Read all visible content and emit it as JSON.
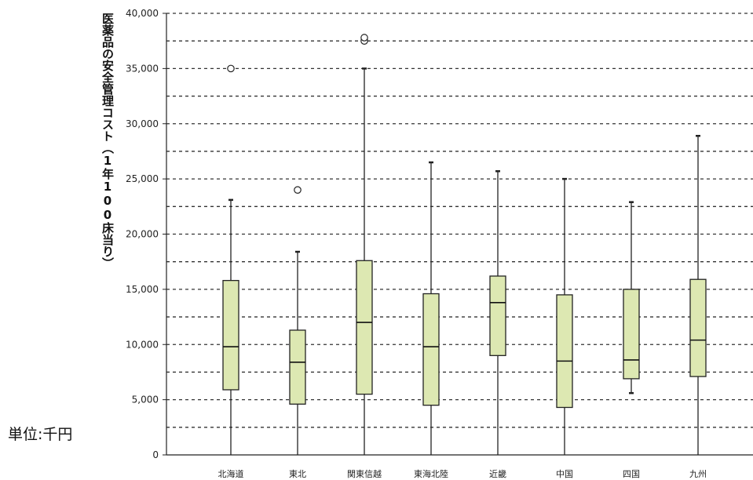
{
  "chart_data": {
    "type": "boxplot",
    "ylabel": "医薬品の安全管理コスト（1年100床当り）",
    "unit_label": "単位:千円",
    "ylim": [
      0,
      40000
    ],
    "y_ticks": [
      0,
      5000,
      10000,
      15000,
      20000,
      25000,
      30000,
      35000,
      40000
    ],
    "y_tick_labels": [
      "0",
      "5,000",
      "10,000",
      "15,000",
      "20,000",
      "25,000",
      "30,000",
      "35,000",
      "40,000"
    ],
    "grid": "dotted horizontal at every 2,500",
    "legend": "none",
    "box_color": "#dde8b2",
    "categories": [
      "北海道",
      "東北",
      "関東信越",
      "東海北陸",
      "近畿",
      "中国",
      "四国",
      "九州"
    ],
    "boxes": [
      {
        "whisker_low": 0,
        "q1": 5900,
        "median": 9800,
        "q3": 15800,
        "whisker_high": 23100,
        "outliers": [
          35000
        ]
      },
      {
        "whisker_low": 0,
        "q1": 4600,
        "median": 8400,
        "q3": 11300,
        "whisker_high": 18400,
        "outliers": [
          24000
        ]
      },
      {
        "whisker_low": 0,
        "q1": 5500,
        "median": 12000,
        "q3": 17600,
        "whisker_high": 35000,
        "outliers": [
          37500,
          37800
        ]
      },
      {
        "whisker_low": 0,
        "q1": 4500,
        "median": 9800,
        "q3": 14600,
        "whisker_high": 26500,
        "outliers": []
      },
      {
        "whisker_low": 0,
        "q1": 9000,
        "median": 13800,
        "q3": 16200,
        "whisker_high": 25700,
        "outliers": []
      },
      {
        "whisker_low": 0,
        "q1": 4300,
        "median": 8500,
        "q3": 14500,
        "whisker_high": 25000,
        "outliers": []
      },
      {
        "whisker_low": 5600,
        "q1": 6900,
        "median": 8600,
        "q3": 15000,
        "whisker_high": 22900,
        "outliers": []
      },
      {
        "whisker_low": 0,
        "q1": 7100,
        "median": 10400,
        "q3": 15900,
        "whisker_high": 28900,
        "outliers": []
      }
    ]
  }
}
